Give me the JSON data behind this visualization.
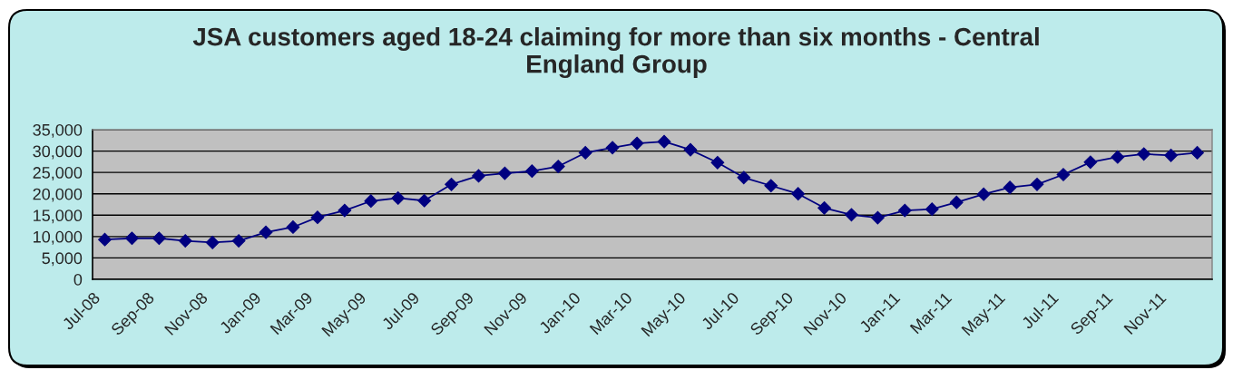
{
  "chart_data": {
    "type": "line",
    "title": "JSA customers aged 18-24 claiming for more than six months - Central England Group",
    "x": [
      "2008-07-15",
      "2008-08-15",
      "2008-09-15",
      "2008-10-15",
      "2008-11-15",
      "2008-12-15",
      "2009-01-15",
      "2009-02-15",
      "2009-03-15",
      "2009-04-15",
      "2009-05-15",
      "2009-06-15",
      "2009-07-15",
      "2009-08-15",
      "2009-09-15",
      "2009-10-15",
      "2009-11-15",
      "2009-12-15",
      "2010-01-15",
      "2010-02-15",
      "2010-03-15",
      "2010-04-15",
      "2010-05-15",
      "2010-06-15",
      "2010-07-15",
      "2010-08-15",
      "2010-09-15",
      "2010-10-15",
      "2010-11-15",
      "2010-12-15",
      "2011-01-15",
      "2011-02-15",
      "2011-03-15",
      "2011-04-15",
      "2011-05-15",
      "2011-06-15",
      "2011-07-15",
      "2011-08-15",
      "2011-09-15",
      "2011-10-15",
      "2011-11-15",
      "2011-12-15"
    ],
    "series": [
      {
        "color": "#000080",
        "values": [
          9300,
          9600,
          9600,
          9000,
          8600,
          9000,
          11000,
          12200,
          14500,
          16100,
          18300,
          19000,
          18400,
          22200,
          24200,
          24800,
          25300,
          26400,
          29600,
          30800,
          31800,
          32200,
          30300,
          27300,
          23800,
          21900,
          20000,
          16700,
          15100,
          14400,
          16100,
          16400,
          18000,
          19900,
          21500,
          22200,
          24500,
          27400,
          28600,
          29300,
          29000,
          29600
        ]
      }
    ],
    "xlim": [
      "2008-07",
      "2012-01"
    ],
    "xticks": [
      {
        "value": "2008-07",
        "label": "Jul-08"
      },
      {
        "value": "2008-09",
        "label": "Sep-08"
      },
      {
        "value": "2008-11",
        "label": "Nov-08"
      },
      {
        "value": "2009-01",
        "label": "Jan-09"
      },
      {
        "value": "2009-03",
        "label": "Mar-09"
      },
      {
        "value": "2009-05",
        "label": "May-09"
      },
      {
        "value": "2009-07",
        "label": "Jul-09"
      },
      {
        "value": "2009-09",
        "label": "Sep-09"
      },
      {
        "value": "2009-11",
        "label": "Nov-09"
      },
      {
        "value": "2010-01",
        "label": "Jan-10"
      },
      {
        "value": "2010-03",
        "label": "Mar-10"
      },
      {
        "value": "2010-05",
        "label": "May-10"
      },
      {
        "value": "2010-07",
        "label": "Jul-10"
      },
      {
        "value": "2010-09",
        "label": "Sep-10"
      },
      {
        "value": "2010-11",
        "label": "Nov-10"
      },
      {
        "value": "2011-01",
        "label": "Jan-11"
      },
      {
        "value": "2011-03",
        "label": "Mar-11"
      },
      {
        "value": "2011-05",
        "label": "May-11"
      },
      {
        "value": "2011-07",
        "label": "Jul-11"
      },
      {
        "value": "2011-09",
        "label": "Sep-11"
      },
      {
        "value": "2011-11",
        "label": "Nov-11"
      },
      {
        "value": "2012-01",
        "label": null
      }
    ],
    "ylim": [
      0,
      35000
    ],
    "yticks": [
      0,
      {
        "value": 5000,
        "label": "5,000"
      },
      {
        "value": 10000,
        "label": "10,000"
      },
      {
        "value": 15000,
        "label": "15,000"
      },
      {
        "value": 20000,
        "label": "20,000"
      },
      {
        "value": 25000,
        "label": "25,000"
      },
      {
        "value": 30000,
        "label": "30,000"
      },
      {
        "value": 35000,
        "label": "35,000"
      }
    ],
    "grid": "y",
    "marker": "diamond",
    "line_style": "solid"
  }
}
